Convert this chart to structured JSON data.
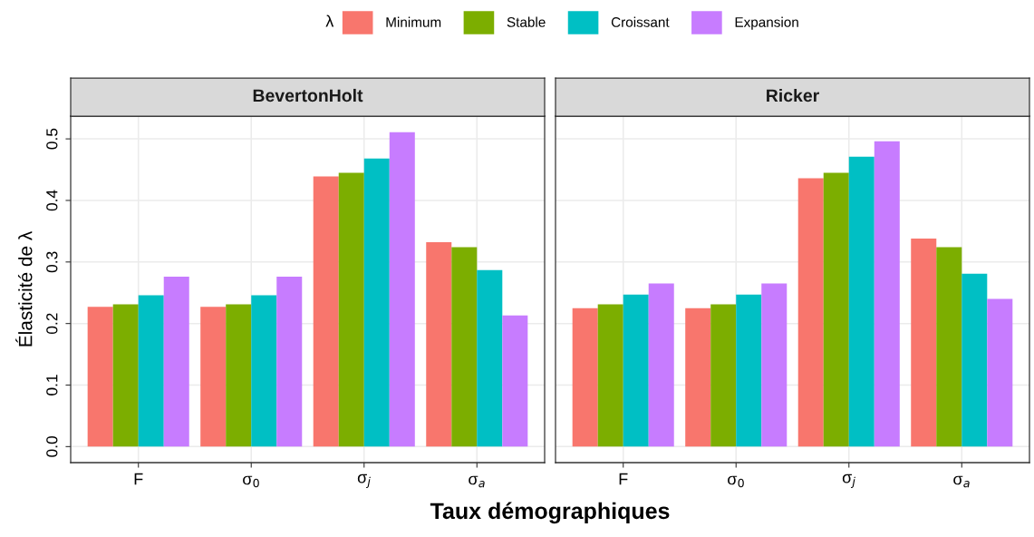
{
  "chart_data": [
    {
      "type": "bar",
      "title": "BevertonHolt",
      "categories": [
        "F",
        "σ$_{0}$",
        "σ$_{j}$",
        "σ$_{a}$"
      ],
      "ylabel": "Élasticité de λ",
      "xlabel": "Taux démographiques",
      "legend_title": "λ",
      "legend": "top",
      "grid": true,
      "ylim": [
        -0.026,
        0.537
      ],
      "yticks": [
        {
          "value": 0,
          "label": "0.0"
        },
        0.1,
        0.2,
        0.3,
        0.4,
        0.5
      ],
      "series": [
        {
          "name": "Minimum",
          "color": "#f8766d",
          "values": [
            0.227,
            0.227,
            0.439,
            0.332
          ]
        },
        {
          "name": "Stable",
          "color": "#7cae00",
          "values": [
            0.231,
            0.231,
            0.445,
            0.324
          ]
        },
        {
          "name": "Croissant",
          "color": "#00bfc4",
          "values": [
            0.246,
            0.246,
            0.468,
            0.287
          ]
        },
        {
          "name": "Expansion",
          "color": "#c77cff",
          "values": [
            0.276,
            0.276,
            0.511,
            0.213
          ]
        }
      ]
    },
    {
      "type": "bar",
      "title": "Ricker",
      "categories": [
        "F",
        "σ$_{0}$",
        "σ$_{j}$",
        "σ$_{a}$"
      ],
      "grid": true,
      "tick_labels": "x",
      "ylim": [
        -0.026,
        0.537
      ],
      "yticks": [
        0,
        0.1,
        0.2,
        0.3,
        0.4,
        0.5
      ],
      "series": [
        {
          "color": "#f8766d",
          "values": [
            0.225,
            0.225,
            0.436,
            0.338
          ]
        },
        {
          "color": "#7cae00",
          "values": [
            0.231,
            0.231,
            0.445,
            0.324
          ]
        },
        {
          "color": "#00bfc4",
          "values": [
            0.247,
            0.247,
            0.471,
            0.281
          ]
        },
        {
          "color": "#c77cff",
          "values": [
            0.265,
            0.265,
            0.496,
            0.24
          ]
        }
      ]
    }
  ]
}
